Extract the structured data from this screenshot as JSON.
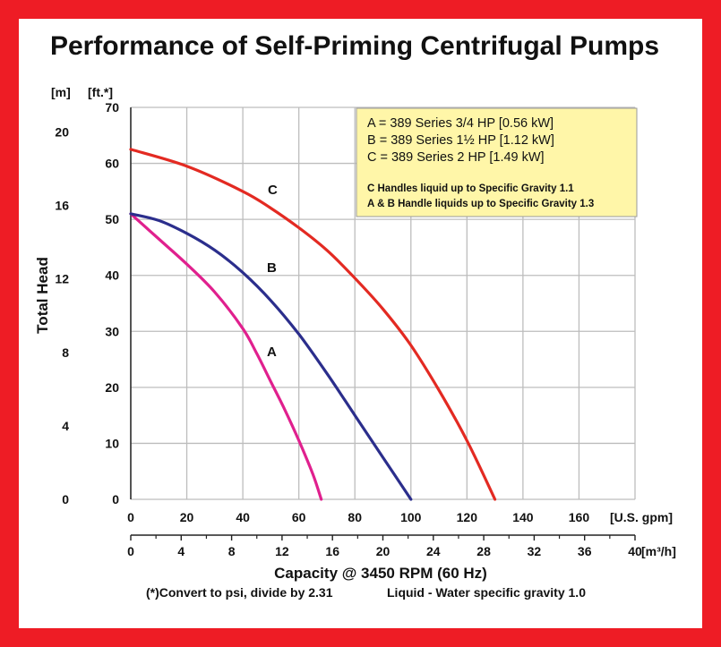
{
  "colors": {
    "frame": "#ee1c25",
    "grid": "#bdbdbd",
    "legend_bg": "#fff6a8",
    "series_a": "#e0208e",
    "series_b": "#2b2e8c",
    "series_c": "#e32a22"
  },
  "chart_data": {
    "type": "line",
    "title": "Performance of Self-Priming Centrifugal Pumps",
    "xlabel": "Capacity @ 3450 RPM (60 Hz)",
    "ylabel": "Total Head",
    "x_unit": "[U.S. gpm]",
    "x2_unit": "[m³/h]",
    "y_unit_left": "[m]",
    "y_unit_right": "[ft.*]",
    "xlim": [
      0,
      180
    ],
    "ylim": [
      0,
      70
    ],
    "x_ticks": [
      "0",
      "20",
      "40",
      "60",
      "80",
      "100",
      "120",
      "140",
      "160"
    ],
    "x2_ticks": [
      "0",
      "4",
      "8",
      "12",
      "16",
      "20",
      "24",
      "28",
      "32",
      "36",
      "40"
    ],
    "y_ticks_ft": [
      "0",
      "10",
      "20",
      "30",
      "40",
      "50",
      "60",
      "70"
    ],
    "y_ticks_m": [
      "0",
      "4",
      "8",
      "12",
      "16",
      "20"
    ],
    "grid": true,
    "legend": {
      "placement": "top-right",
      "lines": [
        "A = 389 Series 3/4 HP [0.56 kW]",
        "B = 389 Series 1½ HP [1.12 kW]",
        "C = 389 Series 2 HP [1.49 kW]"
      ],
      "notes": [
        "C Handles liquid up to Specific Gravity 1.1",
        "A & B Handle liquids up to Specific Gravity 1.3"
      ]
    },
    "series": [
      {
        "name": "A",
        "color": "#e0208e",
        "x": [
          0,
          10,
          20,
          30,
          40,
          45,
          50,
          55,
          60,
          65,
          68
        ],
        "y": [
          51,
          46.5,
          42,
          37,
          30.5,
          26,
          21,
          16,
          10.5,
          4.5,
          0
        ]
      },
      {
        "name": "B",
        "color": "#2b2e8c",
        "x": [
          0,
          10,
          20,
          30,
          40,
          50,
          60,
          70,
          80,
          90,
          100
        ],
        "y": [
          51,
          49.8,
          47.5,
          44.5,
          40.5,
          35.5,
          29.5,
          22.5,
          15,
          7.5,
          0
        ]
      },
      {
        "name": "C",
        "color": "#e32a22",
        "x": [
          0,
          20,
          40,
          50,
          60,
          70,
          80,
          90,
          100,
          110,
          120,
          130
        ],
        "y": [
          62.5,
          59.5,
          55,
          52,
          48.5,
          44.5,
          39.5,
          34,
          27.5,
          19.5,
          10.5,
          0
        ]
      }
    ],
    "footnote_left": "(*)Convert to psi, divide by 2.31",
    "footnote_right": "Liquid - Water specific gravity 1.0"
  }
}
